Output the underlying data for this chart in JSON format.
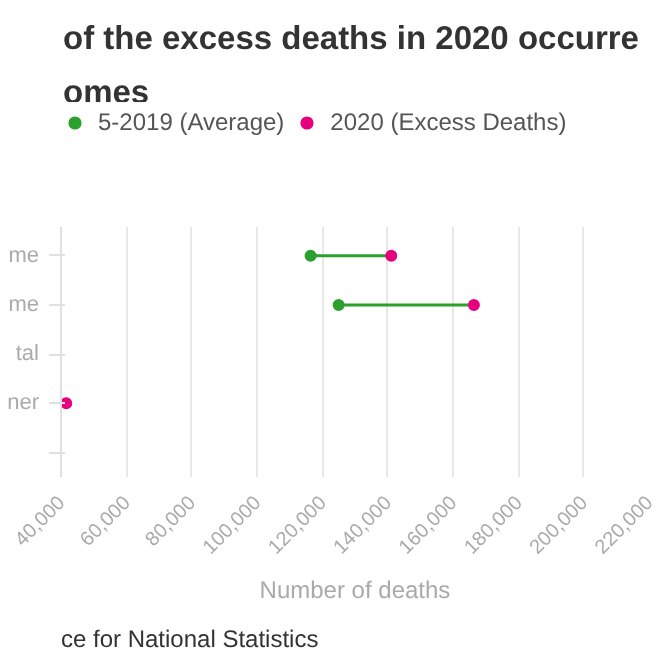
{
  "chart_data": {
    "type": "scatter",
    "title": "of the excess deaths in 2020 occurre\nomes",
    "xlabel": "Number of deaths",
    "categories": [
      "me",
      "me",
      "tal",
      "ner",
      null
    ],
    "series": [
      {
        "name": "5-2019 (Average)",
        "color": "#2ca02c",
        "values": [
          116400,
          125000,
          null,
          null,
          null
        ]
      },
      {
        "name": "2020 (Excess Deaths)",
        "color": "#e6007e",
        "values": [
          141100,
          166400,
          null,
          41600,
          null
        ]
      }
    ],
    "xlim": [
      40000,
      220000
    ],
    "xticks": [
      {
        "value": 40000,
        "label": "40,000"
      },
      {
        "value": 60000,
        "label": "60,000"
      },
      {
        "value": 80000,
        "label": "80,000"
      },
      {
        "value": 100000,
        "label": "100,000"
      },
      {
        "value": 120000,
        "label": "120,000"
      },
      {
        "value": 140000,
        "label": "140,000"
      },
      {
        "value": 160000,
        "label": "160,000"
      },
      {
        "value": 180000,
        "label": "180,000"
      },
      {
        "value": 200000,
        "label": "200,000"
      },
      {
        "value": 220000,
        "label": "220,000"
      }
    ],
    "orientation": "horizontal",
    "grid": "x",
    "legend": "top",
    "marker": "circle",
    "annotations": [
      "ce for National Statistics"
    ]
  }
}
